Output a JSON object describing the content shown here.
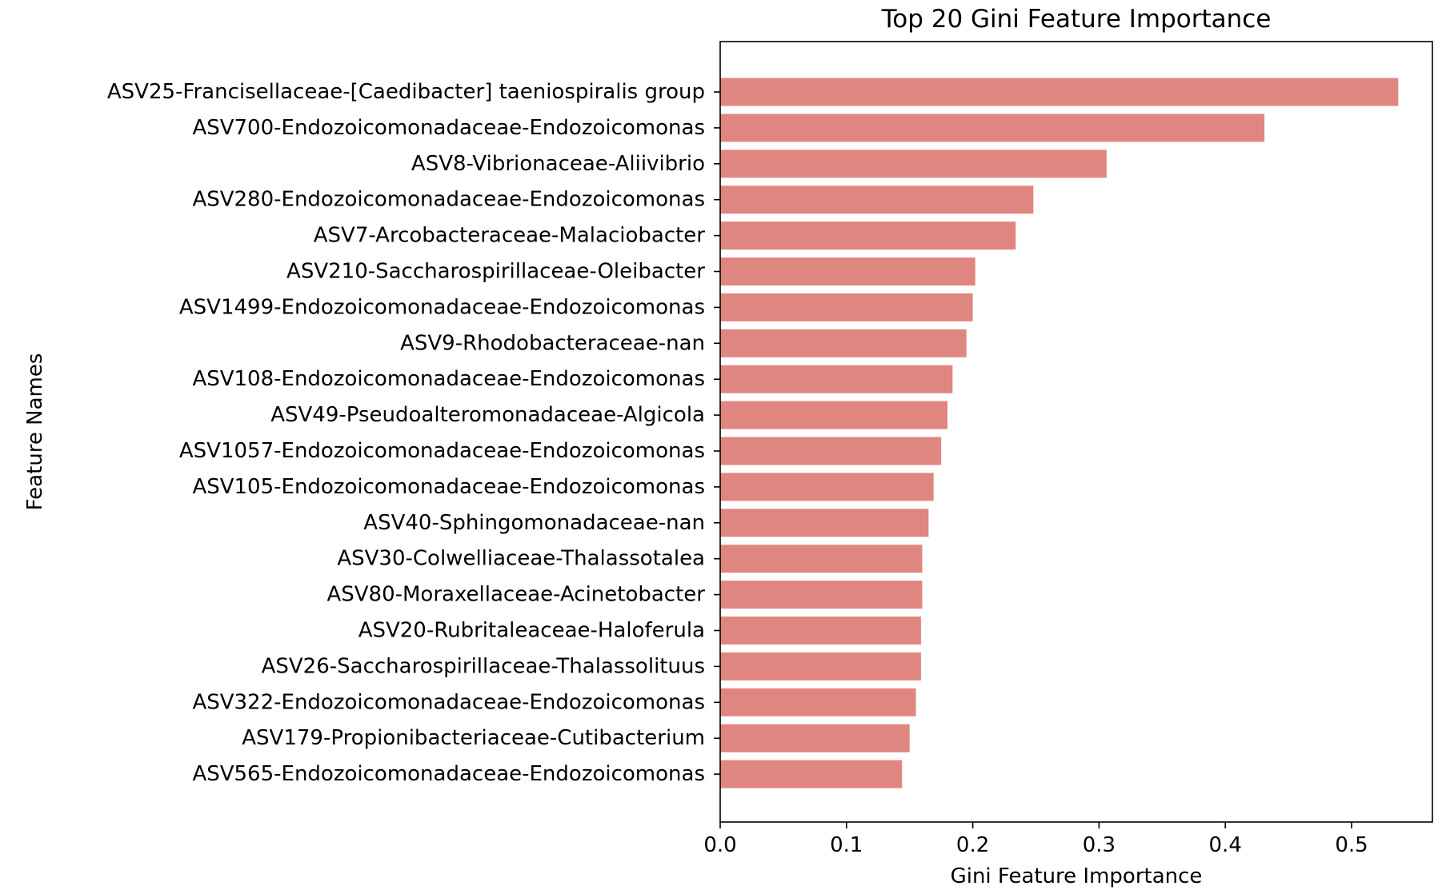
{
  "chart_data": {
    "type": "bar",
    "orientation": "horizontal",
    "title": "Top 20 Gini Feature Importance",
    "xlabel": "Gini Feature Importance",
    "ylabel": "Feature Names",
    "xlim": [
      0,
      0.564
    ],
    "xticks": [
      0.0,
      0.1,
      0.2,
      0.3,
      0.4,
      0.5
    ],
    "xtick_labels": [
      "0.0",
      "0.1",
      "0.2",
      "0.3",
      "0.4",
      "0.5"
    ],
    "grid": false,
    "bar_color": "#e08680",
    "categories": [
      "ASV25-Francisellaceae-[Caedibacter] taeniospiralis group",
      "ASV700-Endozoicomonadaceae-Endozoicomonas",
      "ASV8-Vibrionaceae-Aliivibrio",
      "ASV280-Endozoicomonadaceae-Endozoicomonas",
      "ASV7-Arcobacteraceae-Malaciobacter",
      "ASV210-Saccharospirillaceae-Oleibacter",
      "ASV1499-Endozoicomonadaceae-Endozoicomonas",
      "ASV9-Rhodobacteraceae-nan",
      "ASV108-Endozoicomonadaceae-Endozoicomonas",
      "ASV49-Pseudoalteromonadaceae-Algicola",
      "ASV1057-Endozoicomonadaceae-Endozoicomonas",
      "ASV105-Endozoicomonadaceae-Endozoicomonas",
      "ASV40-Sphingomonadaceae-nan",
      "ASV30-Colwelliaceae-Thalassotalea",
      "ASV80-Moraxellaceae-Acinetobacter",
      "ASV20-Rubritaleaceae-Haloferula",
      "ASV26-Saccharospirillaceae-Thalassolituus",
      "ASV322-Endozoicomonadaceae-Endozoicomonas",
      "ASV179-Propionibacteriaceae-Cutibacterium",
      "ASV565-Endozoicomonadaceae-Endozoicomonas"
    ],
    "values": [
      0.537,
      0.431,
      0.306,
      0.248,
      0.234,
      0.202,
      0.2,
      0.195,
      0.184,
      0.18,
      0.175,
      0.169,
      0.165,
      0.16,
      0.16,
      0.159,
      0.159,
      0.155,
      0.15,
      0.144
    ]
  }
}
